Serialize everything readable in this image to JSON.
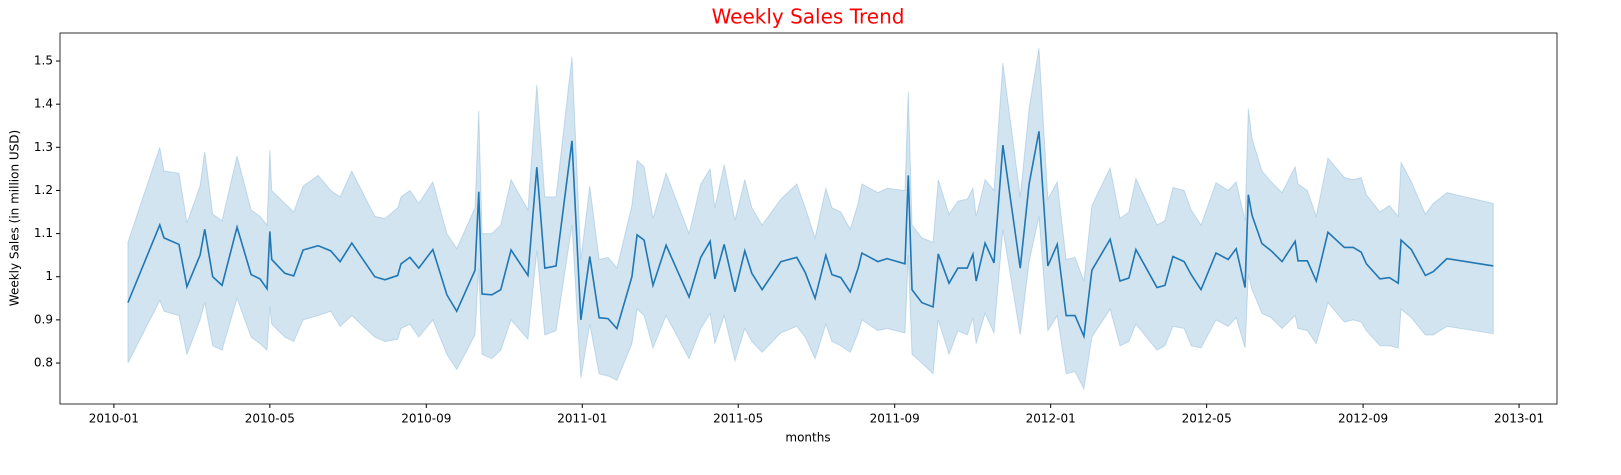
{
  "chart_data": {
    "type": "line",
    "title": "Weekly Sales Trend",
    "xlabel": "months",
    "ylabel": "Weekly Sales (in million USD)",
    "title_color": "#ff0000",
    "x": [
      2010.03,
      2010.098,
      2010.107,
      2010.139,
      2010.156,
      2010.184,
      2010.194,
      2010.211,
      2010.231,
      2010.263,
      2010.293,
      2010.312,
      2010.327,
      2010.333,
      2010.337,
      2010.365,
      2010.384,
      2010.404,
      2010.436,
      2010.463,
      2010.483,
      2010.508,
      2010.557,
      2010.579,
      2010.606,
      2010.613,
      2010.632,
      2010.651,
      2010.681,
      2010.711,
      2010.732,
      2010.771,
      2010.779,
      2010.786,
      2010.807,
      2010.826,
      2010.848,
      2010.884,
      2010.903,
      2010.92,
      2010.944,
      2010.978,
      2010.997,
      2011.016,
      2011.036,
      2011.055,
      2011.074,
      2011.106,
      2011.117,
      2011.132,
      2011.151,
      2011.179,
      2011.228,
      2011.253,
      2011.273,
      2011.283,
      2011.303,
      2011.326,
      2011.347,
      2011.362,
      2011.384,
      2011.424,
      2011.458,
      2011.476,
      2011.497,
      2011.52,
      2011.533,
      2011.552,
      2011.572,
      2011.589,
      2011.597,
      2011.631,
      2011.651,
      2011.689,
      2011.696,
      2011.704,
      2011.725,
      2011.749,
      2011.76,
      2011.783,
      2011.802,
      2011.822,
      2011.834,
      2011.841,
      2011.86,
      2011.879,
      2011.898,
      2011.935,
      2011.954,
      2011.975,
      2011.994,
      2012.014,
      2012.033,
      2012.052,
      2012.071,
      2012.088,
      2012.127,
      2012.148,
      2012.167,
      2012.182,
      2012.227,
      2012.244,
      2012.261,
      2012.285,
      2012.3,
      2012.321,
      2012.353,
      2012.379,
      2012.396,
      2012.415,
      2012.422,
      2012.43,
      2012.451,
      2012.471,
      2012.494,
      2012.522,
      2012.528,
      2012.548,
      2012.567,
      2012.592,
      2012.627,
      2012.646,
      2012.663,
      2012.674,
      2012.703,
      2012.723,
      2012.742,
      2012.748,
      2012.77,
      2012.8,
      2012.817,
      2012.846,
      2012.945
    ],
    "series": [
      {
        "color": "#1f77b4",
        "values": [
          0.94,
          1.12,
          1.09,
          1.075,
          0.977,
          1.05,
          1.11,
          1.0,
          0.98,
          1.115,
          1.005,
          0.995,
          0.972,
          1.105,
          1.04,
          1.008,
          1.002,
          1.062,
          1.072,
          1.06,
          1.035,
          1.078,
          1.0,
          0.993,
          1.003,
          1.03,
          1.045,
          1.02,
          1.063,
          0.958,
          0.92,
          1.015,
          1.197,
          0.96,
          0.958,
          0.97,
          1.062,
          1.003,
          1.254,
          1.02,
          1.025,
          1.315,
          0.9,
          1.047,
          0.905,
          0.903,
          0.88,
          1.0,
          1.097,
          1.085,
          0.98,
          1.073,
          0.953,
          1.045,
          1.082,
          0.995,
          1.075,
          0.965,
          1.06,
          1.008,
          0.97,
          1.035,
          1.045,
          1.01,
          0.95,
          1.05,
          1.005,
          0.998,
          0.965,
          1.02,
          1.055,
          1.035,
          1.042,
          1.03,
          1.235,
          0.97,
          0.94,
          0.93,
          1.053,
          0.985,
          1.02,
          1.02,
          1.052,
          0.99,
          1.078,
          1.032,
          1.305,
          1.02,
          1.215,
          1.337,
          1.025,
          1.075,
          0.91,
          0.91,
          0.862,
          1.015,
          1.087,
          0.99,
          0.997,
          1.063,
          0.975,
          0.98,
          1.047,
          1.035,
          1.005,
          0.97,
          1.055,
          1.04,
          1.065,
          0.975,
          1.19,
          1.142,
          1.077,
          1.06,
          1.035,
          1.082,
          1.037,
          1.037,
          0.99,
          1.103,
          1.068,
          1.068,
          1.057,
          1.03,
          0.995,
          0.998,
          0.985,
          1.085,
          1.063,
          1.003,
          1.012,
          1.042,
          1.025
        ],
        "lower": [
          0.8,
          0.945,
          0.92,
          0.91,
          0.82,
          0.9,
          0.94,
          0.84,
          0.83,
          0.95,
          0.86,
          0.845,
          0.83,
          0.93,
          0.89,
          0.86,
          0.85,
          0.9,
          0.91,
          0.92,
          0.885,
          0.91,
          0.86,
          0.85,
          0.855,
          0.88,
          0.89,
          0.86,
          0.9,
          0.82,
          0.785,
          0.865,
          1.02,
          0.82,
          0.81,
          0.83,
          0.9,
          0.855,
          1.06,
          0.865,
          0.875,
          1.12,
          0.765,
          0.89,
          0.775,
          0.77,
          0.76,
          0.845,
          0.925,
          0.91,
          0.835,
          0.91,
          0.81,
          0.88,
          0.915,
          0.845,
          0.91,
          0.805,
          0.88,
          0.85,
          0.825,
          0.87,
          0.885,
          0.86,
          0.81,
          0.89,
          0.85,
          0.84,
          0.825,
          0.87,
          0.9,
          0.875,
          0.88,
          0.87,
          1.05,
          0.82,
          0.8,
          0.775,
          0.9,
          0.82,
          0.875,
          0.865,
          0.905,
          0.845,
          0.915,
          0.87,
          1.11,
          0.865,
          1.035,
          1.14,
          0.875,
          0.91,
          0.775,
          0.78,
          0.74,
          0.86,
          0.925,
          0.84,
          0.85,
          0.89,
          0.83,
          0.84,
          0.885,
          0.88,
          0.84,
          0.835,
          0.9,
          0.885,
          0.905,
          0.835,
          1.005,
          0.97,
          0.915,
          0.905,
          0.88,
          0.91,
          0.88,
          0.875,
          0.845,
          0.94,
          0.895,
          0.9,
          0.895,
          0.875,
          0.84,
          0.84,
          0.835,
          0.925,
          0.905,
          0.865,
          0.865,
          0.885,
          0.868
        ],
        "upper": [
          1.08,
          1.3,
          1.245,
          1.24,
          1.125,
          1.21,
          1.29,
          1.145,
          1.13,
          1.28,
          1.155,
          1.14,
          1.12,
          1.295,
          1.2,
          1.17,
          1.15,
          1.21,
          1.235,
          1.2,
          1.185,
          1.245,
          1.14,
          1.135,
          1.16,
          1.185,
          1.2,
          1.17,
          1.22,
          1.1,
          1.065,
          1.16,
          1.385,
          1.1,
          1.1,
          1.12,
          1.225,
          1.155,
          1.445,
          1.185,
          1.185,
          1.51,
          1.04,
          1.21,
          1.04,
          1.045,
          1.02,
          1.165,
          1.27,
          1.255,
          1.135,
          1.24,
          1.1,
          1.215,
          1.25,
          1.16,
          1.26,
          1.13,
          1.225,
          1.16,
          1.12,
          1.18,
          1.215,
          1.16,
          1.09,
          1.205,
          1.16,
          1.15,
          1.11,
          1.17,
          1.215,
          1.195,
          1.205,
          1.2,
          1.43,
          1.12,
          1.09,
          1.08,
          1.225,
          1.145,
          1.175,
          1.18,
          1.205,
          1.14,
          1.225,
          1.2,
          1.495,
          1.185,
          1.39,
          1.53,
          1.18,
          1.22,
          1.04,
          1.045,
          0.99,
          1.165,
          1.252,
          1.135,
          1.15,
          1.228,
          1.12,
          1.13,
          1.207,
          1.2,
          1.155,
          1.12,
          1.218,
          1.2,
          1.22,
          1.13,
          1.39,
          1.32,
          1.245,
          1.22,
          1.195,
          1.255,
          1.215,
          1.2,
          1.14,
          1.275,
          1.23,
          1.225,
          1.23,
          1.19,
          1.15,
          1.165,
          1.14,
          1.265,
          1.22,
          1.145,
          1.17,
          1.195,
          1.17
        ]
      }
    ],
    "band_color": "#1f77b4",
    "xlim": [
      2009.885,
      2013.081
    ],
    "ylim": [
      0.705,
      1.565
    ],
    "xticks": [
      {
        "value": 2010,
        "label": "2010-01"
      },
      {
        "value": 2010.333,
        "label": "2010-05"
      },
      {
        "value": 2010.667,
        "label": "2010-09"
      },
      {
        "value": 2011,
        "label": "2011-01"
      },
      {
        "value": 2011.333,
        "label": "2011-05"
      },
      {
        "value": 2011.667,
        "label": "2011-09"
      },
      {
        "value": 2012,
        "label": "2012-01"
      },
      {
        "value": 2012.333,
        "label": "2012-05"
      },
      {
        "value": 2012.667,
        "label": "2012-09"
      },
      {
        "value": 2013,
        "label": "2013-01"
      }
    ],
    "yticks": [
      0.8,
      0.9,
      1.0,
      1.1,
      1.2,
      1.3,
      1.4,
      1.5
    ]
  }
}
